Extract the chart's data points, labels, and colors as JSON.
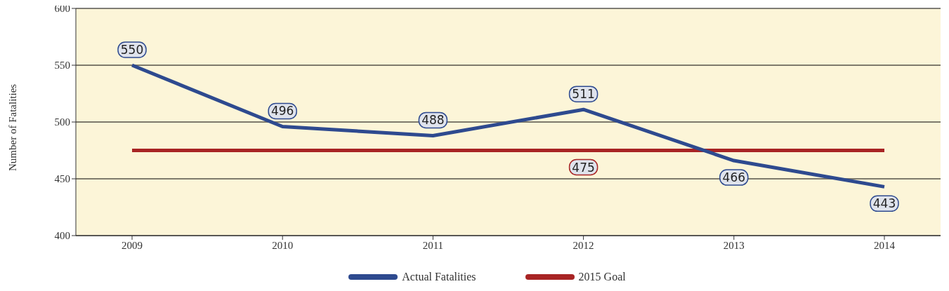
{
  "chart_data": {
    "type": "line",
    "ylabel": "Number of Fatalities",
    "categories": [
      "2009",
      "2010",
      "2011",
      "2012",
      "2013",
      "2014"
    ],
    "series": [
      {
        "name": "Actual Fatalities",
        "color": "#2e4a8f",
        "values": [
          550,
          496,
          488,
          511,
          466,
          443
        ],
        "value_labels": [
          "550",
          "496",
          "488",
          "511",
          "466",
          "443"
        ]
      },
      {
        "name": "2015 Goal",
        "color": "#a82424",
        "values": [
          475,
          475,
          475,
          475,
          475,
          475
        ],
        "value_labels": [
          null,
          null,
          null,
          "475",
          null,
          null
        ]
      }
    ],
    "ylim": [
      400,
      600
    ],
    "yticks": [
      400,
      450,
      500,
      550,
      600
    ],
    "grid": "y",
    "legend": "bottom",
    "marker": "none",
    "line_style": "solid"
  }
}
